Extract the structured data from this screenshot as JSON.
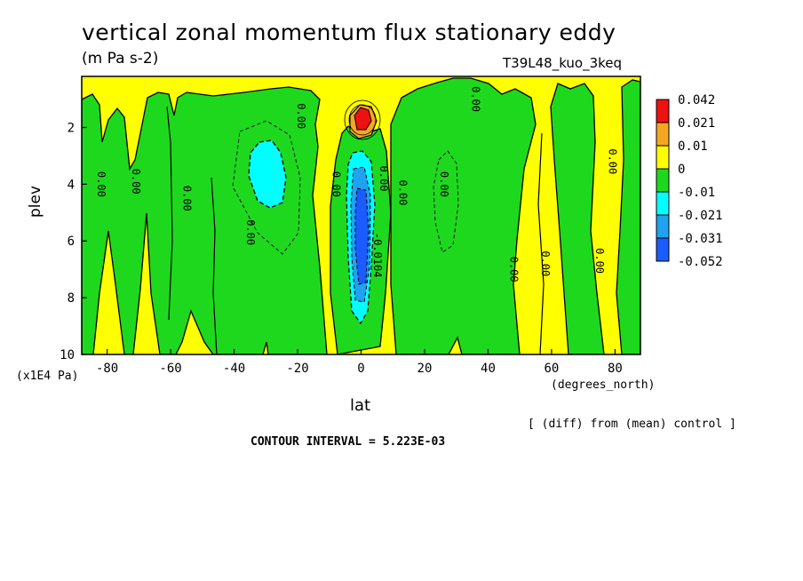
{
  "chart_data": {
    "type": "heatmap",
    "title": "vertical zonal momentum flux stationary eddy",
    "units": "(m Pa s-2)",
    "run_label": "T39L48_kuo_3keq",
    "xlabel": "lat",
    "x_unit": "(degrees_north)",
    "ylabel": "plev",
    "y_unit": "(x1E4 Pa)",
    "xlim": [
      -88,
      88
    ],
    "ylim": [
      10,
      0.2
    ],
    "x_ticks": [
      "-80",
      "-60",
      "-40",
      "-20",
      "0",
      "20",
      "40",
      "60",
      "80"
    ],
    "y_ticks": [
      "2",
      "4",
      "6",
      "8",
      "10"
    ],
    "legend": {
      "position": "right",
      "levels": [
        "0.042",
        "0.021",
        "0.01",
        "0",
        "-0.01",
        "-0.021",
        "-0.031",
        "-0.052"
      ],
      "colors": [
        "#ee1111",
        "#f5a623",
        "#ffff00",
        "#1ed81e",
        "#00ffff",
        "#1fa2f0",
        "#1a5cff"
      ]
    },
    "contour_labels": [
      "0.00",
      "0.00",
      "0.00",
      "0.00",
      "0.00",
      "0.00",
      "0.00",
      "0.00",
      "0.00",
      "0.00",
      "0.00",
      "0.00",
      "0.00",
      "0.00",
      "-0.0104"
    ],
    "features": [
      {
        "name": "positive maximum",
        "lat": 0,
        "plev": 1.5,
        "value": 0.042
      },
      {
        "name": "negative minimum",
        "lat": 0,
        "plev": 5.5,
        "value": -0.052
      },
      {
        "name": "negative lobe",
        "lat": -30,
        "plev": 3.5,
        "value": -0.021
      }
    ]
  },
  "footer": {
    "diff_note": "[ (diff) from (mean) control ]",
    "contour_interval": "CONTOUR INTERVAL = 5.223E-03"
  }
}
